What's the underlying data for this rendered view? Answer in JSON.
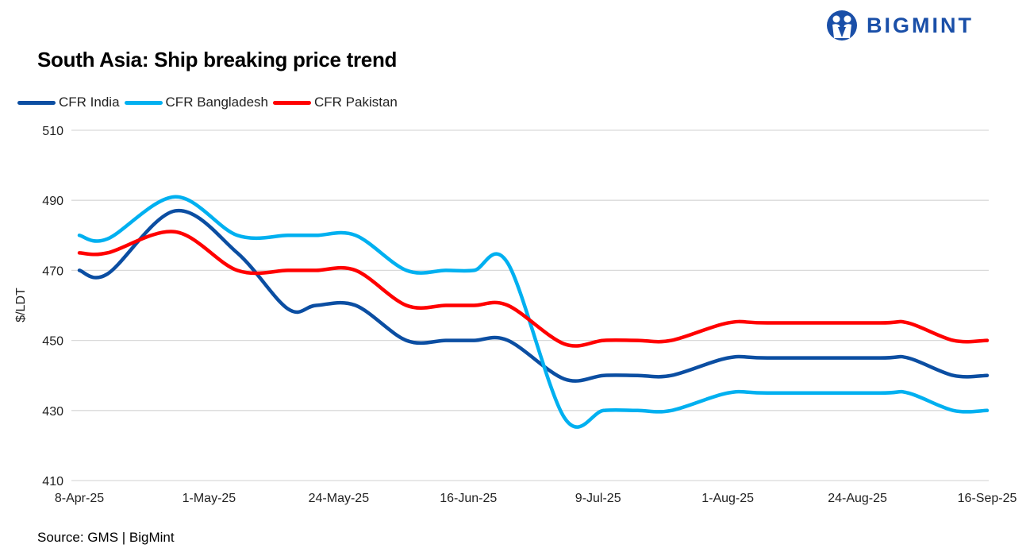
{
  "title": "South Asia: Ship breaking  price trend",
  "source": "Source: GMS | BigMint",
  "logo": {
    "text": "BIGMINT",
    "color": "#1a4fa8"
  },
  "chart_data": {
    "type": "line",
    "title": "South Asia: Ship breaking  price trend",
    "ylabel": "$/LDT",
    "xlabel": "",
    "ylim": [
      410,
      510
    ],
    "yticks": [
      410,
      430,
      450,
      470,
      490,
      510
    ],
    "xlim": [
      "8-Apr-25",
      "16-Sep-25"
    ],
    "xticks": [
      "8-Apr-25",
      "1-May-25",
      "24-May-25",
      "16-Jun-25",
      "9-Jul-25",
      "1-Aug-25",
      "24-Aug-25",
      "16-Sep-25"
    ],
    "grid": true,
    "legend": "top-left",
    "smooth": true,
    "x": [
      "8-Apr-25",
      "13-Apr-25",
      "25-Apr-25",
      "6-May-25",
      "15-May-25",
      "20-May-25",
      "27-May-25",
      "5-Jun-25",
      "12-Jun-25",
      "17-Jun-25",
      "23-Jun-25",
      "3-Jul-25",
      "10-Jul-25",
      "16-Jul-25",
      "22-Jul-25",
      "1-Aug-25",
      "8-Aug-25",
      "28-Aug-25",
      "2-Sep-25",
      "10-Sep-25",
      "16-Sep-25"
    ],
    "series": [
      {
        "name": "CFR India",
        "color": "#0b4ea2",
        "values": [
          470,
          469,
          487,
          475,
          459,
          460,
          460,
          450,
          450,
          450,
          450,
          439,
          440,
          440,
          440,
          445,
          445,
          445,
          445,
          440,
          440
        ]
      },
      {
        "name": "CFR Bangladesh",
        "color": "#00b0f0",
        "values": [
          480,
          479,
          491,
          480,
          480,
          480,
          480,
          470,
          470,
          470,
          472,
          428,
          430,
          430,
          430,
          435,
          435,
          435,
          435,
          430,
          430
        ]
      },
      {
        "name": "CFR Pakistan",
        "color": "#ff0000",
        "values": [
          475,
          475,
          481,
          470,
          470,
          470,
          470,
          460,
          460,
          460,
          460,
          449,
          450,
          450,
          450,
          455,
          455,
          455,
          455,
          450,
          450
        ]
      }
    ]
  }
}
